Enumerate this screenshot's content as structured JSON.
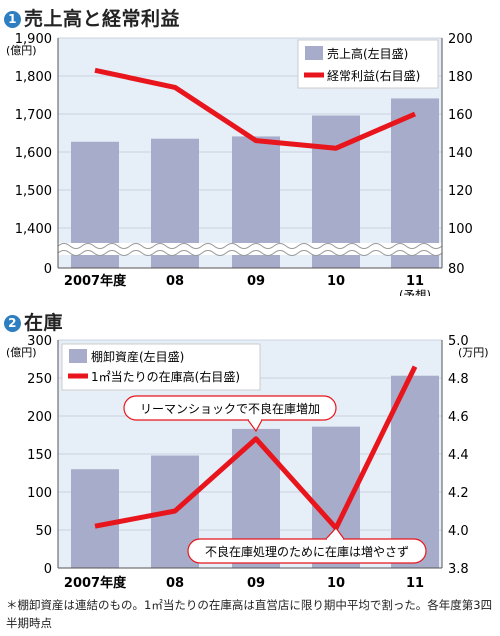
{
  "chart_data": [
    {
      "type": "bar",
      "title": "売上高と経常利益",
      "title_number": "1",
      "left_unit": "(億円)",
      "categories": [
        "2007年度",
        "08",
        "09",
        "10",
        "11"
      ],
      "category_note": "(予想)",
      "left_axis": {
        "ticks": [
          "0",
          "1,400",
          "1,500",
          "1,600",
          "1,700",
          "1,800",
          "1,900"
        ],
        "broken": true,
        "ylim": [
          1300,
          1900
        ]
      },
      "right_axis": {
        "ticks": [
          "80",
          "100",
          "120",
          "140",
          "160",
          "180",
          "200"
        ],
        "broken": true,
        "ylim": [
          80,
          200
        ]
      },
      "series": [
        {
          "name": "売上高(左目盛)",
          "kind": "bar",
          "axis": "left",
          "values": [
            1627,
            1635,
            1641,
            1696,
            1741
          ]
        },
        {
          "name": "経常利益(右目盛)",
          "kind": "line",
          "axis": "right",
          "values": [
            183,
            174,
            146,
            142,
            160
          ]
        }
      ],
      "colors": {
        "bar": "#a7accb",
        "line": "#e8161c"
      }
    },
    {
      "type": "bar",
      "title": "在庫",
      "title_number": "2",
      "left_unit": "(億円)",
      "right_unit": "(万円)",
      "categories": [
        "2007年度",
        "08",
        "09",
        "10",
        "11"
      ],
      "left_axis": {
        "ticks": [
          "0",
          "50",
          "100",
          "150",
          "200",
          "250",
          "300"
        ],
        "ylim": [
          0,
          300
        ]
      },
      "right_axis": {
        "ticks": [
          "3.8",
          "4.0",
          "4.2",
          "4.4",
          "4.6",
          "4.8",
          "5.0"
        ],
        "ylim": [
          3.8,
          5.0
        ]
      },
      "series": [
        {
          "name": "棚卸資産(左目盛)",
          "kind": "bar",
          "axis": "left",
          "values": [
            130,
            148,
            183,
            186,
            253
          ]
        },
        {
          "name": "1㎡当たりの在庫高(右目盛)",
          "kind": "line",
          "axis": "right",
          "values": [
            4.02,
            4.1,
            4.48,
            4.01,
            4.86
          ]
        }
      ],
      "annotations": [
        "リーマンショックで不良在庫増加",
        "不良在庫処理のために在庫は増やさず"
      ],
      "colors": {
        "bar": "#a7accb",
        "line": "#e8161c"
      }
    }
  ],
  "footnote": "＊棚卸資産は連結のもの。1㎡当たりの在庫高は直営店に限り期中平均で割った。各年度第3四半期時点"
}
